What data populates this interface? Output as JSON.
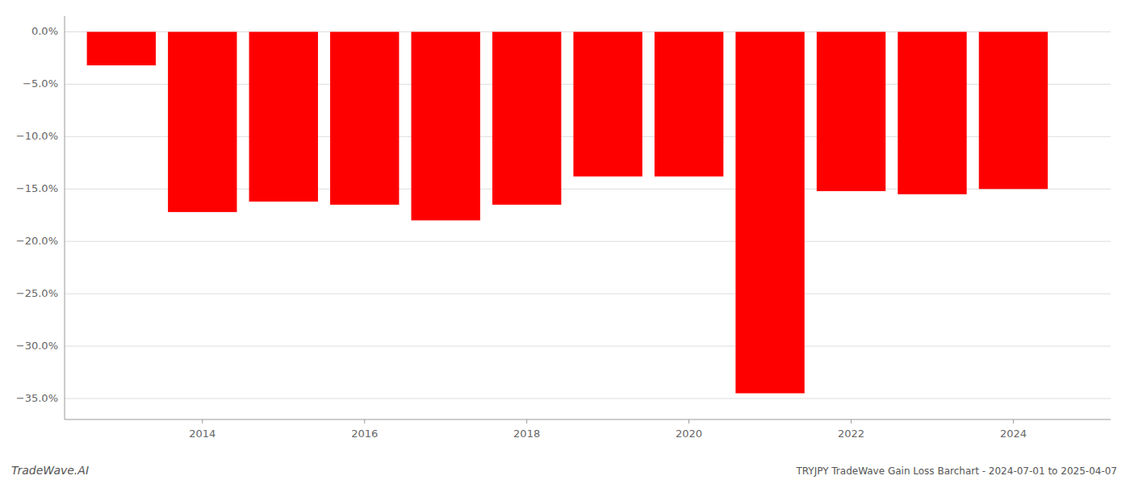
{
  "chart_data": {
    "type": "bar",
    "title": "TRYJPY TradeWave Gain Loss Barchart - 2024-07-01 to 2025-04-07",
    "annotations": [
      "TradeWave.AI"
    ],
    "x": [
      2013,
      2014,
      2015,
      2016,
      2017,
      2018,
      2019,
      2020,
      2021,
      2022,
      2023,
      2024
    ],
    "values": [
      -3.2,
      -17.2,
      -16.2,
      -16.5,
      -18.0,
      -16.5,
      -13.8,
      -13.8,
      -34.5,
      -15.2,
      -15.5,
      -15.0
    ],
    "color": "#ff0000",
    "xlim": [
      2012.3,
      2025.2
    ],
    "xticks": [
      2014,
      2016,
      2018,
      2020,
      2022,
      2024
    ],
    "ylim": [
      -37,
      1.5
    ],
    "yticks": [
      {
        "value": 0.0,
        "label": "0.0%"
      },
      {
        "value": -5.0,
        "label": "−5.0%"
      },
      {
        "value": -10.0,
        "label": "−10.0%"
      },
      {
        "value": -15.0,
        "label": "−15.0%"
      },
      {
        "value": -20.0,
        "label": "−20.0%"
      },
      {
        "value": -25.0,
        "label": "−25.0%"
      },
      {
        "value": -30.0,
        "label": "−30.0%"
      },
      {
        "value": -35.0,
        "label": "−35.0%"
      }
    ],
    "grid": true
  }
}
